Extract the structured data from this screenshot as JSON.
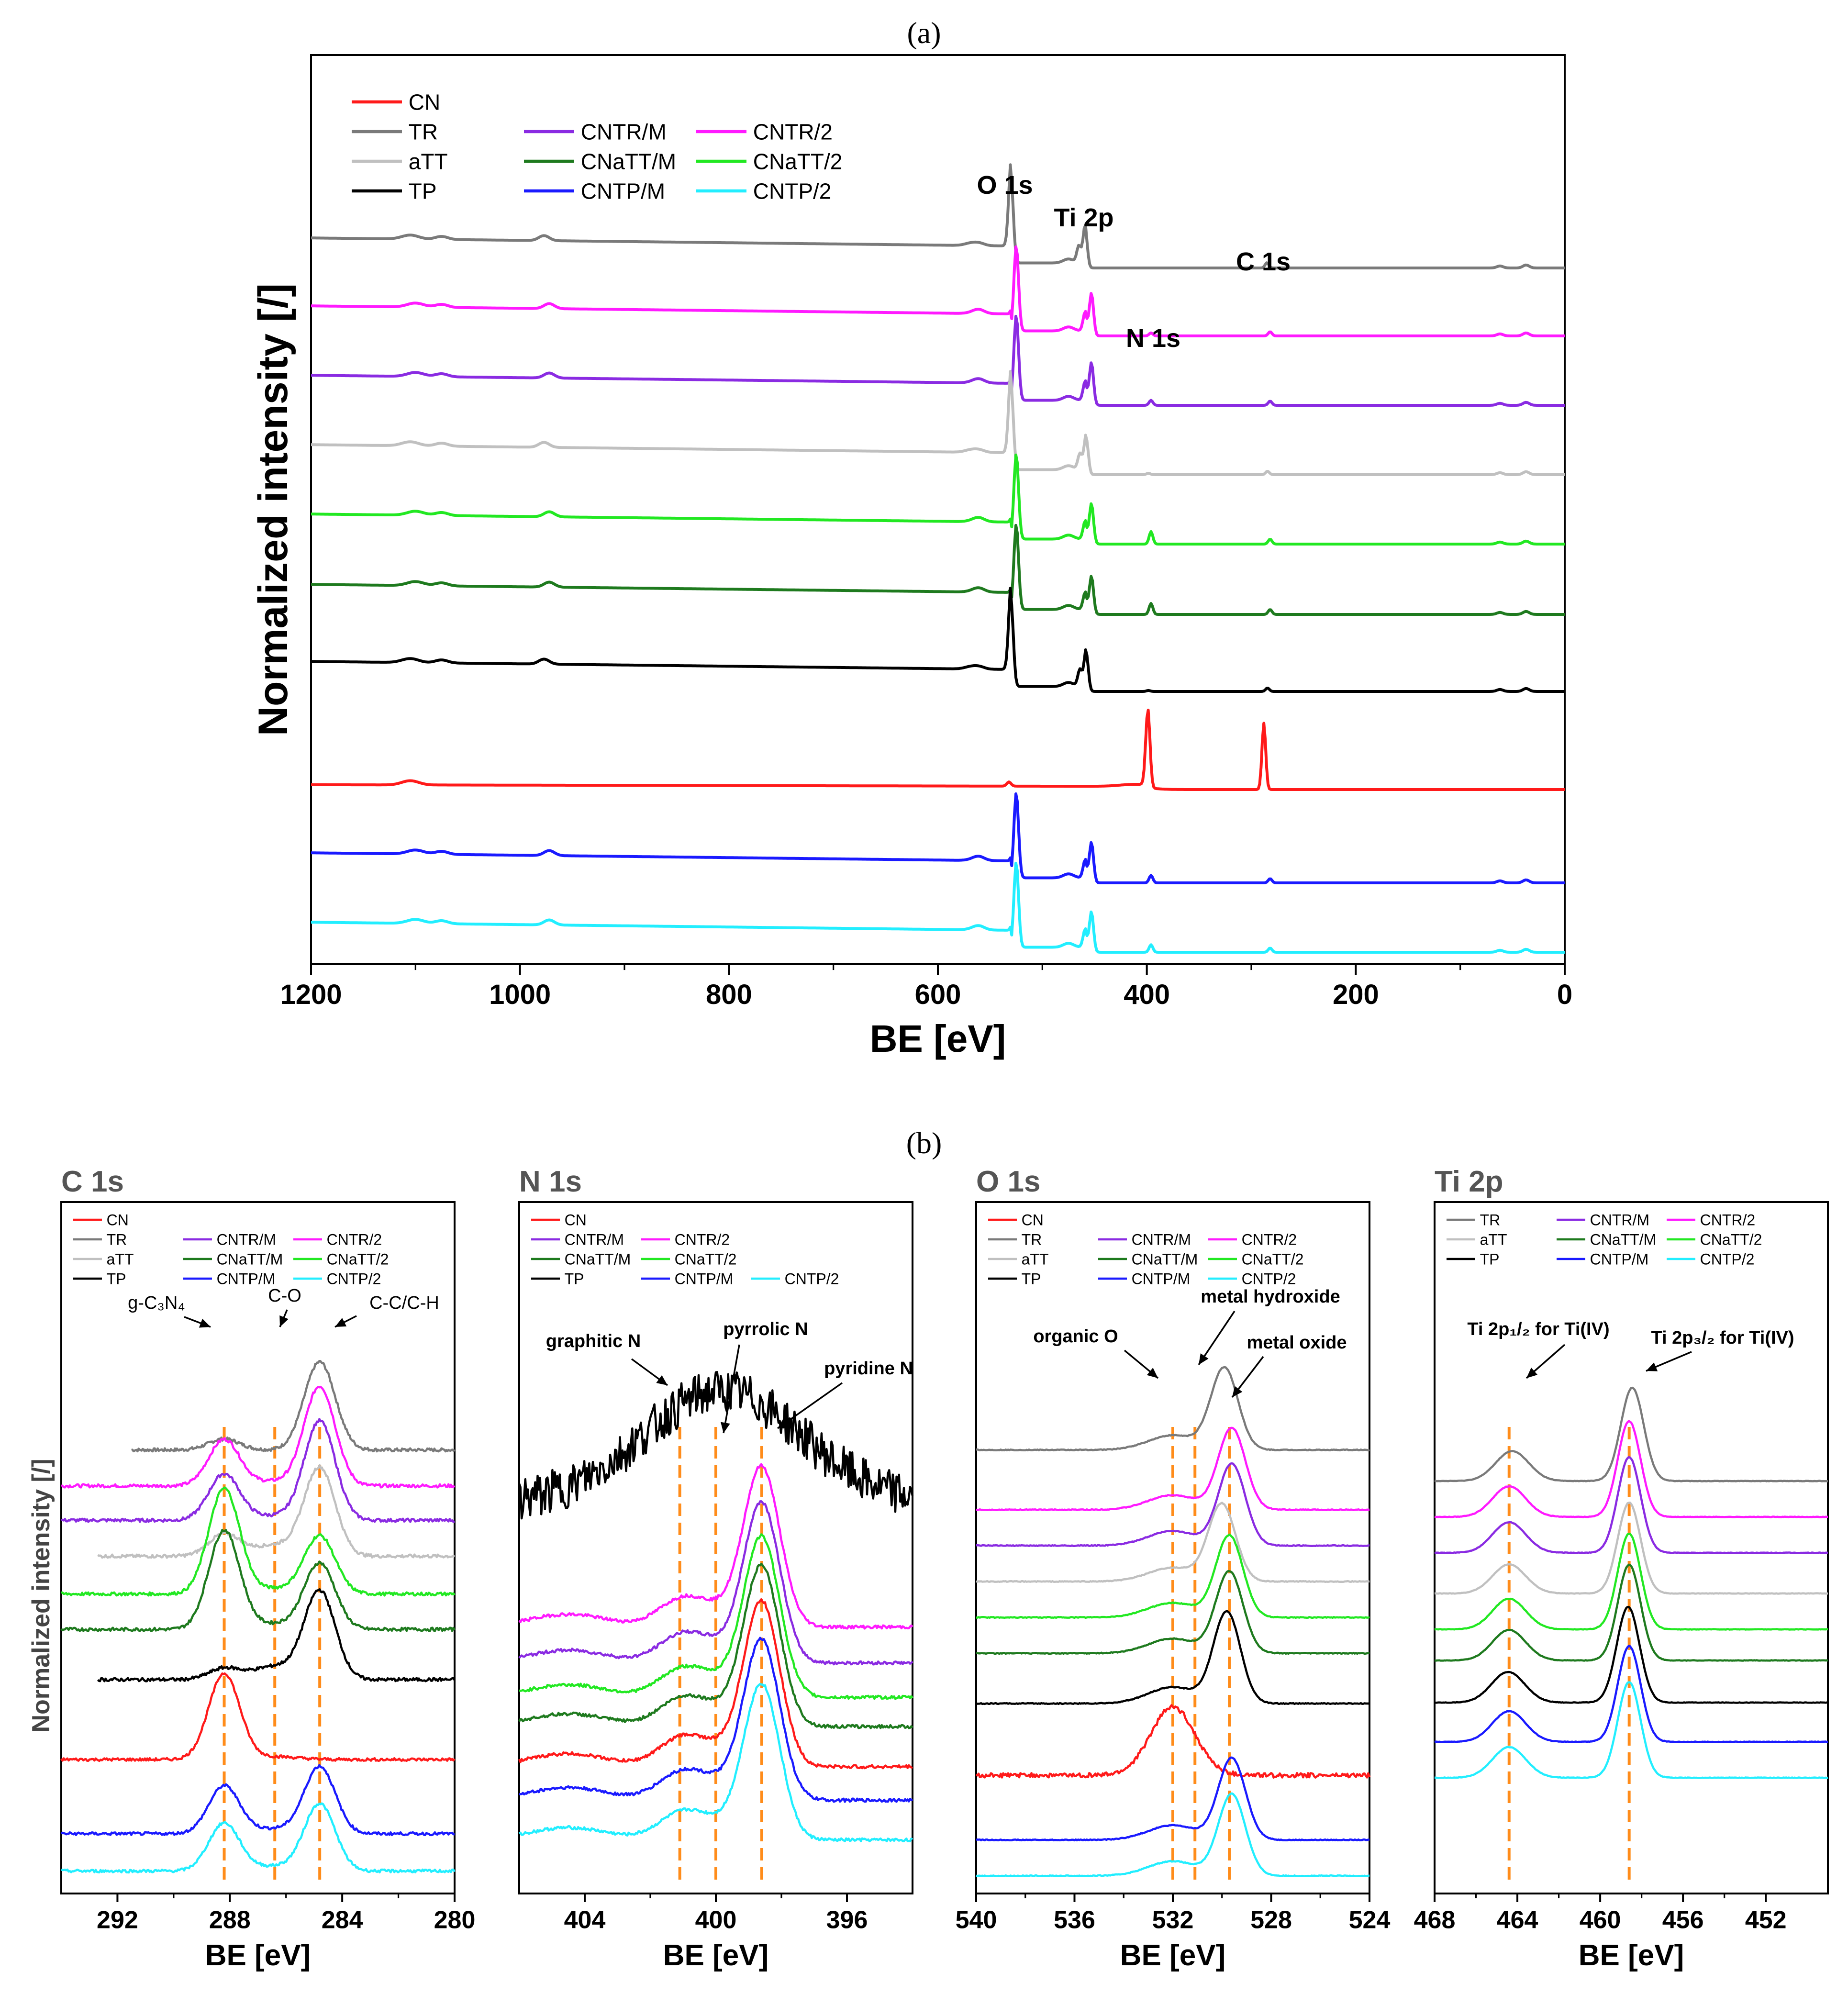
{
  "panel_labels": {
    "a": "(a)",
    "b": "(b)"
  },
  "colors": {
    "CN": "#ff1a1a",
    "TR": "#7a7a7a",
    "aTT": "#c0c0c0",
    "TP": "#000000",
    "CNTR/M": "#8a2be2",
    "CNaTT/M": "#1e7a1e",
    "CNTP/M": "#1a1aff",
    "CNTR/2": "#ff1aff",
    "CNaTT/2": "#22e822",
    "CNTP/2": "#22eeff",
    "refline": "#ff8c1a"
  },
  "chart_data": [
    {
      "id": "a",
      "type": "line",
      "title": "",
      "xlabel": "BE [eV]",
      "ylabel": "Normalized intensity [/]",
      "xlim": [
        1200,
        0
      ],
      "xticks": [
        "1200",
        "1000",
        "800",
        "600",
        "400",
        "200",
        "0"
      ],
      "legend": {
        "position": "top-left",
        "rows": [
          [
            "CN"
          ],
          [
            "TR",
            "CNTR/M",
            "CNTR/2"
          ],
          [
            "aTT",
            "CNaTT/M",
            "CNaTT/2"
          ],
          [
            "TP",
            "CNTP/M",
            "CNTP/2"
          ]
        ]
      },
      "series_order_top_to_bottom": [
        "TR",
        "CNTR/2",
        "CNTR/M",
        "aTT",
        "CNaTT/2",
        "CNaTT/M",
        "TP",
        "CN",
        "CNTP/M",
        "CNTP/2"
      ],
      "annotations": [
        {
          "text": "O 1s",
          "x": 531
        },
        {
          "text": "Ti 2p",
          "x": 459
        },
        {
          "text": "C 1s",
          "x": 285
        },
        {
          "text": "N 1s",
          "x": 398
        }
      ]
    },
    {
      "id": "b-C1s",
      "type": "line",
      "title": "C 1s",
      "xlabel": "BE [eV]",
      "ylabel": "Normalized intensity [/]",
      "xlim": [
        294,
        280
      ],
      "xticks": [
        "292",
        "288",
        "284",
        "280"
      ],
      "legend": {
        "position": "top",
        "rows": [
          [
            "CN"
          ],
          [
            "TR",
            "CNTR/M",
            "CNTR/2"
          ],
          [
            "aTT",
            "CNaTT/M",
            "CNaTT/2"
          ],
          [
            "TP",
            "CNTP/M",
            "CNTP/2"
          ]
        ]
      },
      "ref_lines": [
        288.2,
        286.4,
        284.8
      ],
      "annotations": [
        {
          "text": "g-C₃N₄",
          "x": 288.2
        },
        {
          "text": "C-O",
          "x": 286.4
        },
        {
          "text": "C-C/C-H",
          "x": 284.8
        }
      ],
      "series_order_top_to_bottom": [
        "TR",
        "CNTR/2",
        "CNTR/M",
        "aTT",
        "CNaTT/2",
        "CNaTT/M",
        "TP",
        "CN",
        "CNTP/M",
        "CNTP/2"
      ]
    },
    {
      "id": "b-N1s",
      "type": "line",
      "title": "N 1s",
      "xlabel": "BE [eV]",
      "ylabel": "",
      "xlim": [
        406,
        394
      ],
      "xticks": [
        "404",
        "400",
        "396"
      ],
      "legend": {
        "position": "top",
        "rows": [
          [
            "CN"
          ],
          [
            "CNTR/M",
            "CNTR/2"
          ],
          [
            "CNaTT/M",
            "CNaTT/2"
          ],
          [
            "TP",
            "CNTP/M",
            "CNTP/2"
          ]
        ]
      },
      "ref_lines": [
        401.1,
        400.0,
        398.6
      ],
      "annotations": [
        {
          "text": "graphitic N",
          "x": 401.1
        },
        {
          "text": "pyrrolic N",
          "x": 400.0
        },
        {
          "text": "pyridine N",
          "x": 398.6
        }
      ],
      "series_order_top_to_bottom": [
        "TP",
        "CNTR/2",
        "CNTR/M",
        "CNaTT/2",
        "CNaTT/M",
        "CN",
        "CNTP/M",
        "CNTP/2"
      ]
    },
    {
      "id": "b-O1s",
      "type": "line",
      "title": "O 1s",
      "xlabel": "BE [eV]",
      "ylabel": "",
      "xlim": [
        540,
        524
      ],
      "xticks": [
        "540",
        "536",
        "532",
        "528",
        "524"
      ],
      "legend": {
        "position": "top",
        "rows": [
          [
            "CN"
          ],
          [
            "TR",
            "CNTR/M",
            "CNTR/2"
          ],
          [
            "aTT",
            "CNaTT/M",
            "CNaTT/2"
          ],
          [
            "TP",
            "CNTP/M",
            "CNTP/2"
          ]
        ]
      },
      "ref_lines": [
        532.0,
        531.1,
        529.7
      ],
      "annotations": [
        {
          "text": "organic O",
          "x": 532.0
        },
        {
          "text": "metal hydroxide",
          "x": 531.1
        },
        {
          "text": "metal oxide",
          "x": 529.7
        }
      ],
      "series_order_top_to_bottom": [
        "TR",
        "CNTR/2",
        "CNTR/M",
        "aTT",
        "CNaTT/2",
        "CNaTT/M",
        "TP",
        "CN",
        "CNTP/M",
        "CNTP/2"
      ]
    },
    {
      "id": "b-Ti2p",
      "type": "line",
      "title": "Ti 2p",
      "xlabel": "BE [eV]",
      "ylabel": "",
      "xlim": [
        468,
        449
      ],
      "xticks": [
        "468",
        "464",
        "460",
        "456",
        "452"
      ],
      "legend": {
        "position": "top",
        "rows": [
          [
            "TR",
            "CNTR/M",
            "CNTR/2"
          ],
          [
            "aTT",
            "CNaTT/M",
            "CNaTT/2"
          ],
          [
            "TP",
            "CNTP/M",
            "CNTP/2"
          ]
        ]
      },
      "ref_lines": [
        464.4,
        458.6
      ],
      "annotations": [
        {
          "text": "Ti 2p₁/₂ for Ti(IV)",
          "x": 464.4
        },
        {
          "text": "Ti 2p₃/₂ for Ti(IV)",
          "x": 458.6
        }
      ],
      "series_order_top_to_bottom": [
        "TR",
        "CNTR/2",
        "CNTR/M",
        "aTT",
        "CNaTT/2",
        "CNaTT/M",
        "TP",
        "CNTP/M",
        "CNTP/2"
      ]
    }
  ]
}
